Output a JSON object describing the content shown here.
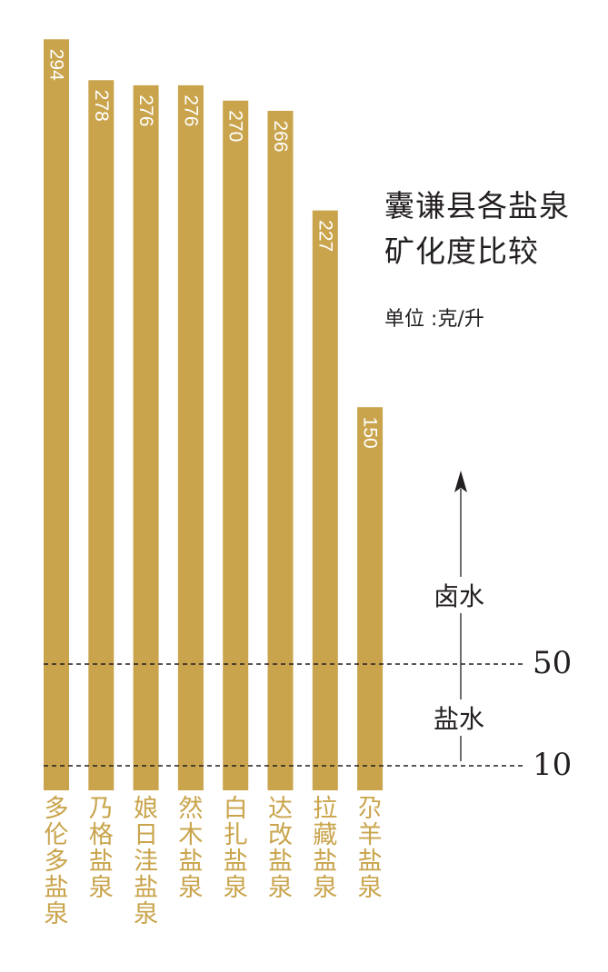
{
  "chart_data": {
    "type": "bar",
    "orientation": "vertical",
    "title": "囊谦县各盐泉矿化度比较",
    "unit": "单位 :克/升",
    "categories": [
      "多伦多盐泉",
      "乃格盐泉",
      "娘日洼盐泉",
      "然木盐泉",
      "白扎盐泉",
      "达改盐泉",
      "拉藏盐泉",
      "尕羊盐泉"
    ],
    "values": [
      294,
      278,
      276,
      276,
      270,
      266,
      227,
      150
    ],
    "value_labels": [
      "294",
      "278",
      "276",
      "276",
      "270",
      "266",
      "227",
      "150"
    ],
    "thresholds": [
      {
        "value": 50,
        "label": "50"
      },
      {
        "value": 10,
        "label": "10"
      }
    ],
    "regions": [
      {
        "label": "卤水",
        "position": "above 50"
      },
      {
        "label": "盐水",
        "position": "between 10 and 50"
      }
    ],
    "bar_color": "#c9a44c",
    "value_label_color": "#ffffff",
    "axis_label_color": "#c9a44c",
    "text_color": "#231f20",
    "grid": false,
    "legend": "none"
  }
}
